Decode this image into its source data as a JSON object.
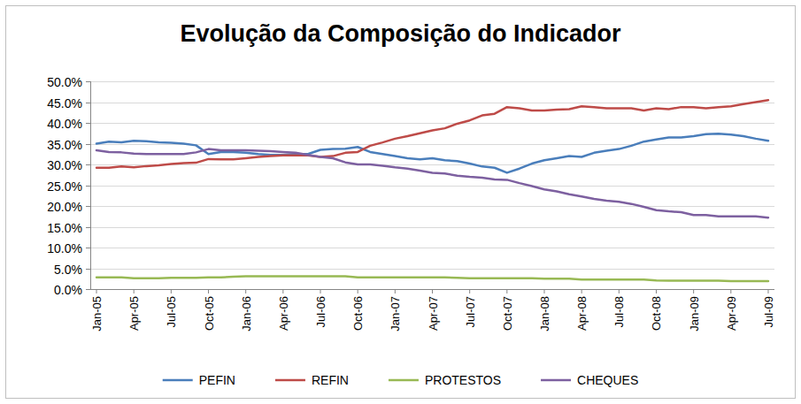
{
  "chart_data": {
    "type": "line",
    "title": "Evolução da Composição do Indicador",
    "categories": [
      "Jan-05",
      null,
      null,
      "Apr-05",
      null,
      null,
      "Jul-05",
      null,
      null,
      "Oct-05",
      null,
      null,
      "Jan-06",
      null,
      null,
      "Apr-06",
      null,
      null,
      "Jul-06",
      null,
      null,
      "Oct-06",
      null,
      null,
      "Jan-07",
      null,
      null,
      "Apr-07",
      null,
      null,
      "Jul-07",
      null,
      null,
      "Oct-07",
      null,
      null,
      "Jan-08",
      null,
      null,
      "Apr-08",
      null,
      null,
      "Jul-08",
      null,
      null,
      "Oct-08",
      null,
      null,
      "Jan-09",
      null,
      null,
      "Apr-09",
      null,
      null,
      "Jul-09"
    ],
    "series": [
      {
        "name": "PEFIN",
        "color": "#4a7ebb",
        "values": [
          35.0,
          35.5,
          35.3,
          35.7,
          35.6,
          35.3,
          35.2,
          35.0,
          34.6,
          32.5,
          33.0,
          33.0,
          32.8,
          32.5,
          32.3,
          32.3,
          32.5,
          32.5,
          33.5,
          33.7,
          33.8,
          34.2,
          33.0,
          32.5,
          32.0,
          31.5,
          31.2,
          31.5,
          31.0,
          30.8,
          30.2,
          29.5,
          29.2,
          28.0,
          29.0,
          30.2,
          31.0,
          31.5,
          32.0,
          31.8,
          32.8,
          33.3,
          33.7,
          34.5,
          35.5,
          36.0,
          36.5,
          36.5,
          36.8,
          37.3,
          37.4,
          37.2,
          36.8,
          36.2,
          35.7
        ]
      },
      {
        "name": "REFIN",
        "color": "#be4b48",
        "values": [
          29.2,
          29.2,
          29.5,
          29.3,
          29.6,
          29.8,
          30.1,
          30.3,
          30.4,
          31.3,
          31.2,
          31.2,
          31.5,
          31.8,
          32.0,
          32.2,
          32.2,
          32.2,
          31.8,
          32.0,
          32.8,
          33.0,
          34.5,
          35.3,
          36.2,
          36.8,
          37.5,
          38.2,
          38.7,
          39.8,
          40.6,
          41.8,
          42.2,
          43.8,
          43.5,
          43.0,
          43.0,
          43.2,
          43.3,
          44.0,
          43.8,
          43.5,
          43.5,
          43.5,
          43.0,
          43.5,
          43.3,
          43.8,
          43.8,
          43.5,
          43.8,
          44.0,
          44.5,
          45.0,
          45.5
        ]
      },
      {
        "name": "PROTESTOS",
        "color": "#98b954",
        "values": [
          2.8,
          2.8,
          2.8,
          2.6,
          2.6,
          2.6,
          2.7,
          2.7,
          2.7,
          2.8,
          2.8,
          3.0,
          3.1,
          3.1,
          3.1,
          3.1,
          3.1,
          3.1,
          3.1,
          3.1,
          3.1,
          2.8,
          2.8,
          2.8,
          2.8,
          2.8,
          2.8,
          2.8,
          2.8,
          2.7,
          2.6,
          2.6,
          2.6,
          2.6,
          2.6,
          2.6,
          2.5,
          2.5,
          2.5,
          2.3,
          2.3,
          2.3,
          2.3,
          2.3,
          2.3,
          2.1,
          2.0,
          2.0,
          2.0,
          2.0,
          2.0,
          1.9,
          1.9,
          1.9,
          1.9
        ]
      },
      {
        "name": "CHEQUES",
        "color": "#7d60a0",
        "values": [
          33.4,
          33.0,
          32.9,
          32.6,
          32.5,
          32.5,
          32.5,
          32.5,
          32.9,
          33.7,
          33.4,
          33.4,
          33.4,
          33.3,
          33.2,
          33.0,
          32.8,
          32.3,
          31.8,
          31.5,
          30.5,
          30.0,
          30.0,
          29.7,
          29.3,
          29.0,
          28.5,
          28.0,
          27.8,
          27.3,
          27.0,
          26.8,
          26.4,
          26.3,
          25.5,
          24.8,
          24.0,
          23.5,
          22.8,
          22.3,
          21.7,
          21.3,
          21.0,
          20.5,
          19.8,
          19.0,
          18.7,
          18.5,
          17.8,
          17.8,
          17.5,
          17.5,
          17.5,
          17.5,
          17.2
        ]
      }
    ],
    "ylim": [
      0,
      50
    ],
    "yticks": [
      {
        "value": 0,
        "label": "0.0%"
      },
      {
        "value": 5,
        "label": "5.0%"
      },
      {
        "value": 10,
        "label": "10.0%"
      },
      {
        "value": 15,
        "label": "15.0%"
      },
      {
        "value": 20,
        "label": "20.0%"
      },
      {
        "value": 25,
        "label": "25.0%"
      },
      {
        "value": 30,
        "label": "30.0%"
      },
      {
        "value": 35,
        "label": "35.0%"
      },
      {
        "value": 40,
        "label": "40.0%"
      },
      {
        "value": 45,
        "label": "45.0%"
      },
      {
        "value": 50,
        "label": "50.0%"
      }
    ],
    "grid": true,
    "legend": "bottom"
  }
}
